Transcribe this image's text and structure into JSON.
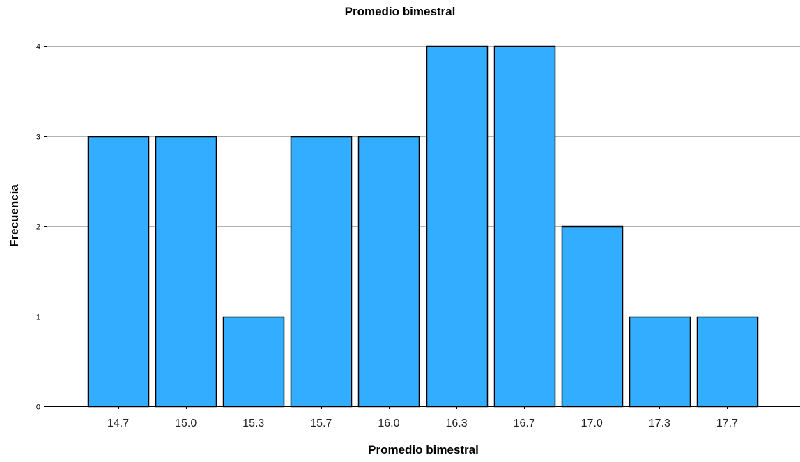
{
  "chart_data": {
    "type": "bar",
    "title": "Promedio bimestral",
    "xlabel": "Promedio bimestral",
    "ylabel": "Frecuencia",
    "categories": [
      "14.7",
      "15.0",
      "15.3",
      "15.7",
      "16.0",
      "16.3",
      "16.7",
      "17.0",
      "17.3",
      "17.7"
    ],
    "values": [
      3,
      3,
      1,
      3,
      3,
      4,
      4,
      2,
      1,
      1
    ],
    "ylim": [
      0,
      4
    ],
    "yticks": [
      0,
      1,
      2,
      3,
      4
    ],
    "grid": true,
    "bar_color": "#33adff",
    "bar_edge_color": "#000000",
    "grid_color": "#b3b3b3"
  }
}
